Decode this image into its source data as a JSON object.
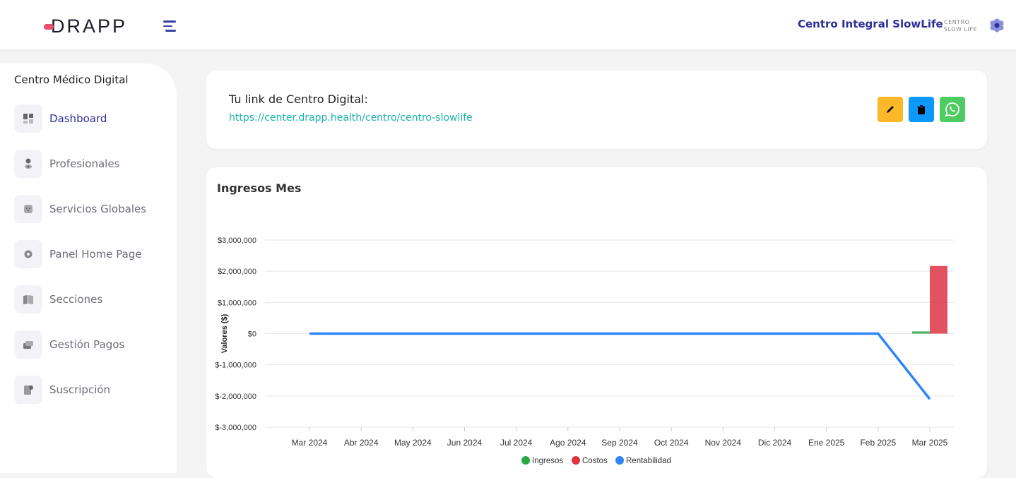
{
  "header": {
    "logo": "DRAPP",
    "center_name": "Centro Integral SlowLife",
    "center_logo_lines": [
      "CENTRO",
      "SLOW LIFE"
    ]
  },
  "sidebar": {
    "title": "Centro Médico Digital",
    "items": [
      {
        "label": "Dashboard",
        "icon": "dashboard-icon",
        "active": true
      },
      {
        "label": "Profesionales",
        "icon": "professional-icon"
      },
      {
        "label": "Servicios Globales",
        "icon": "services-icon"
      },
      {
        "label": "Panel Home Page",
        "icon": "gear-icon"
      },
      {
        "label": "Secciones",
        "icon": "book-icon"
      },
      {
        "label": "Gestión Pagos",
        "icon": "payments-icon"
      },
      {
        "label": "Suscripción",
        "icon": "subscription-icon"
      }
    ]
  },
  "link_card": {
    "title": "Tu link de Centro Digital:",
    "url": "https://center.drapp.health/centro/centro-slowlife",
    "buttons": [
      {
        "icon": "pencil-icon",
        "color": "#fbb829"
      },
      {
        "icon": "clipboard-icon",
        "color": "#0d99fb"
      },
      {
        "icon": "whatsapp-icon",
        "color": "#4ecb62"
      }
    ]
  },
  "chart_card": {
    "title": "Ingresos Mes"
  },
  "chart_data": {
    "type": "bar+line",
    "title": "Ingresos Mes",
    "ylabel": "Valores ($)",
    "xlabel": "",
    "ylim": [
      -3000000,
      3000000
    ],
    "yticks": [
      3000000,
      2000000,
      1000000,
      0,
      -1000000,
      -2000000,
      -3000000
    ],
    "ytick_labels": [
      "$3,000,000",
      "$2,000,000",
      "$1,000,000",
      "$0",
      "$-1,000,000",
      "$-2,000,000",
      "$-3,000,000"
    ],
    "categories": [
      "Mar 2024",
      "Abr 2024",
      "May 2024",
      "Jun 2024",
      "Jul 2024",
      "Ago 2024",
      "Sep 2024",
      "Oct 2024",
      "Nov 2024",
      "Dic 2024",
      "Ene 2025",
      "Feb 2025",
      "Mar 2025"
    ],
    "series": [
      {
        "name": "Ingresos",
        "type": "bar",
        "color": "#28a745",
        "values": [
          0,
          0,
          0,
          0,
          0,
          0,
          0,
          0,
          0,
          0,
          0,
          0,
          70000
        ]
      },
      {
        "name": "Costos",
        "type": "bar",
        "color": "#dc3545",
        "values": [
          0,
          0,
          0,
          0,
          0,
          0,
          0,
          0,
          0,
          0,
          0,
          0,
          2170000
        ]
      },
      {
        "name": "Rentabilidad",
        "type": "line",
        "color": "#2f86f6",
        "values": [
          0,
          0,
          0,
          0,
          0,
          0,
          0,
          0,
          0,
          0,
          0,
          0,
          -2100000
        ]
      }
    ],
    "legend": "bottom",
    "grid": true
  }
}
